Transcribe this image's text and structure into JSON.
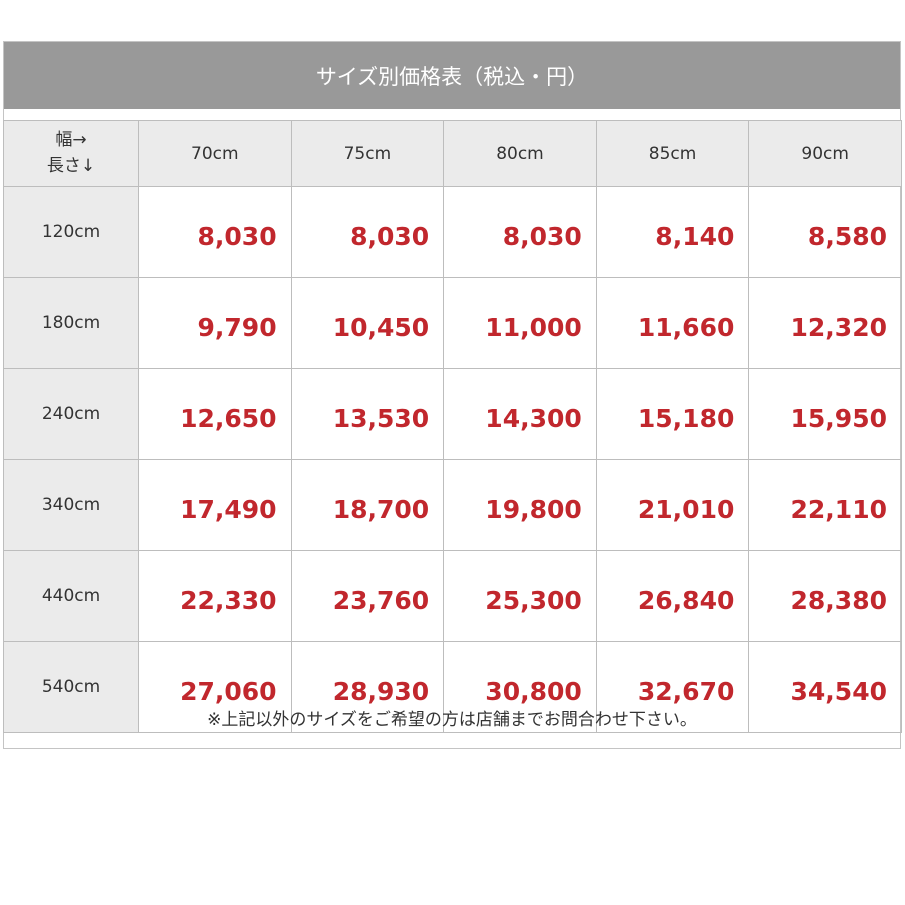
{
  "title": "サイズ別価格表（税込・円）",
  "corner": {
    "width_label": "幅→",
    "length_label": "長さ↓"
  },
  "columns": [
    "70cm",
    "75cm",
    "80cm",
    "85cm",
    "90cm"
  ],
  "rows": [
    {
      "label": "120cm",
      "prices": [
        "8,030",
        "8,030",
        "8,030",
        "8,140",
        "8,580"
      ]
    },
    {
      "label": "180cm",
      "prices": [
        "9,790",
        "10,450",
        "11,000",
        "11,660",
        "12,320"
      ]
    },
    {
      "label": "240cm",
      "prices": [
        "12,650",
        "13,530",
        "14,300",
        "15,180",
        "15,950"
      ]
    },
    {
      "label": "340cm",
      "prices": [
        "17,490",
        "18,700",
        "19,800",
        "21,010",
        "22,110"
      ]
    },
    {
      "label": "440cm",
      "prices": [
        "22,330",
        "23,760",
        "25,300",
        "26,840",
        "28,380"
      ]
    },
    {
      "label": "540cm",
      "prices": [
        "27,060",
        "28,930",
        "30,800",
        "32,670",
        "34,540"
      ]
    }
  ],
  "note": "※上記以外のサイズをご希望の方は店舗までお問合わせ下さい。",
  "colors": {
    "header_bg": "#999999",
    "label_bg": "#ebebeb",
    "price": "#c1272d"
  }
}
